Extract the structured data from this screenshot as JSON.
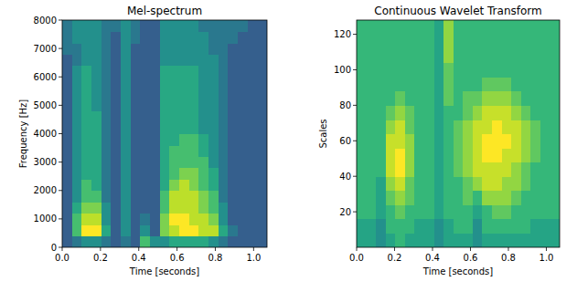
{
  "chart_data": [
    {
      "type": "heatmap",
      "title": "Mel-spectrum",
      "x_label": "Time [seconds]",
      "y_label": "Frequency [Hz]",
      "xlim": [
        0,
        1.07
      ],
      "ylim": [
        0,
        8000
      ],
      "xticks": [
        {
          "value": 0,
          "label": "0.0"
        },
        {
          "value": 0.2,
          "label": "0.2"
        },
        {
          "value": 0.4,
          "label": "0.4"
        },
        {
          "value": 0.6,
          "label": "0.6"
        },
        {
          "value": 0.8,
          "label": "0.8"
        },
        {
          "value": 1.0,
          "label": "1.0"
        }
      ],
      "yticks": [
        0,
        1000,
        2000,
        3000,
        4000,
        5000,
        6000,
        7000,
        8000
      ],
      "zlim": [
        -1,
        9
      ],
      "cells": [
        [
          2,
          3,
          4,
          4,
          3,
          2,
          3,
          2,
          6,
          4,
          4,
          5,
          5,
          5,
          5,
          4,
          3,
          2,
          2,
          2,
          2
        ],
        [
          2,
          6,
          9,
          9,
          5,
          2,
          4,
          2,
          4,
          2,
          7,
          8,
          9,
          9,
          8,
          8,
          5,
          3,
          2,
          2,
          2
        ],
        [
          2,
          6,
          8,
          8,
          4,
          2,
          4,
          2,
          3,
          2,
          7,
          9,
          9,
          8,
          8,
          7,
          4,
          2,
          2,
          2,
          2
        ],
        [
          2,
          5,
          7,
          7,
          4,
          2,
          4,
          2,
          2,
          2,
          6,
          8,
          8,
          8,
          7,
          6,
          4,
          2,
          2,
          2,
          2
        ],
        [
          2,
          4,
          6,
          6,
          3,
          2,
          4,
          2,
          2,
          2,
          6,
          8,
          8,
          8,
          7,
          6,
          3,
          2,
          2,
          2,
          2
        ],
        [
          2,
          4,
          6,
          5,
          3,
          2,
          4,
          2,
          2,
          2,
          5,
          7,
          8,
          7,
          6,
          5,
          3,
          2,
          2,
          2,
          2
        ],
        [
          2,
          4,
          5,
          5,
          3,
          2,
          4,
          2,
          2,
          2,
          5,
          6,
          7,
          7,
          6,
          5,
          3,
          2,
          2,
          2,
          2
        ],
        [
          2,
          4,
          5,
          5,
          3,
          2,
          4,
          2,
          2,
          2,
          5,
          6,
          6,
          6,
          6,
          4,
          3,
          2,
          2,
          2,
          2
        ],
        [
          2,
          4,
          5,
          5,
          3,
          2,
          4,
          2,
          2,
          2,
          5,
          6,
          6,
          6,
          5,
          4,
          3,
          2,
          2,
          2,
          2
        ],
        [
          2,
          4,
          5,
          5,
          3,
          2,
          4,
          2,
          2,
          2,
          5,
          5,
          6,
          6,
          5,
          4,
          3,
          2,
          2,
          2,
          2
        ],
        [
          2,
          4,
          5,
          5,
          3,
          2,
          4,
          2,
          2,
          2,
          5,
          5,
          5,
          5,
          4,
          4,
          3,
          2,
          2,
          2,
          2
        ],
        [
          2,
          4,
          5,
          5,
          3,
          2,
          4,
          2,
          2,
          2,
          5,
          5,
          5,
          5,
          4,
          4,
          3,
          2,
          2,
          2,
          2
        ],
        [
          2,
          4,
          5,
          4,
          3,
          2,
          4,
          2,
          2,
          2,
          5,
          5,
          5,
          5,
          4,
          4,
          3,
          2,
          2,
          2,
          2
        ],
        [
          2,
          4,
          5,
          4,
          3,
          2,
          4,
          2,
          2,
          2,
          5,
          5,
          5,
          5,
          4,
          4,
          3,
          2,
          2,
          2,
          2
        ],
        [
          2,
          4,
          5,
          4,
          3,
          2,
          4,
          2,
          2,
          2,
          5,
          5,
          5,
          5,
          4,
          4,
          3,
          2,
          2,
          2,
          2
        ],
        [
          2,
          4,
          5,
          4,
          3,
          2,
          4,
          2,
          2,
          2,
          5,
          5,
          5,
          5,
          4,
          4,
          3,
          2,
          2,
          2,
          2
        ],
        [
          2,
          3,
          4,
          4,
          3,
          2,
          4,
          2,
          2,
          2,
          4,
          4,
          4,
          4,
          4,
          4,
          3,
          2,
          2,
          2,
          2
        ],
        [
          3,
          3,
          4,
          4,
          3,
          2,
          4,
          2,
          2,
          2,
          4,
          4,
          4,
          4,
          4,
          3,
          3,
          2,
          2,
          2,
          2
        ],
        [
          3,
          4,
          4,
          4,
          3,
          2,
          4,
          3,
          2,
          2,
          4,
          4,
          4,
          4,
          4,
          3,
          3,
          3,
          2,
          2,
          2
        ],
        [
          3,
          4,
          4,
          4,
          3,
          3,
          4,
          3,
          2,
          2,
          4,
          4,
          4,
          4,
          3,
          3,
          3,
          3,
          3,
          2,
          2
        ]
      ]
    },
    {
      "type": "heatmap",
      "title": "Continuous Wavelet Transform",
      "x_label": "Time [seconds]",
      "y_label": "Scales",
      "xlim": [
        0,
        1.07
      ],
      "ylim": [
        0,
        128
      ],
      "xticks": [
        {
          "value": 0,
          "label": "0.0"
        },
        {
          "value": 0.2,
          "label": "0.2"
        },
        {
          "value": 0.4,
          "label": "0.4"
        },
        {
          "value": 0.6,
          "label": "0.6"
        },
        {
          "value": 0.8,
          "label": "0.8"
        },
        {
          "value": 1.0,
          "label": "1.0"
        }
      ],
      "yticks": [
        20,
        40,
        60,
        80,
        100,
        120
      ],
      "zlim": [
        -3,
        9
      ],
      "cells": [
        [
          4,
          4,
          3,
          4,
          5,
          4,
          4,
          4,
          3,
          4,
          4,
          4,
          3,
          4,
          4,
          4,
          4,
          4,
          4,
          4,
          4
        ],
        [
          4,
          4,
          3,
          5,
          5,
          5,
          4,
          4,
          3,
          4,
          5,
          5,
          3,
          5,
          5,
          5,
          5,
          5,
          4,
          4,
          4
        ],
        [
          5,
          5,
          4,
          5,
          6,
          5,
          5,
          5,
          4,
          5,
          5,
          5,
          4,
          5,
          6,
          6,
          5,
          5,
          5,
          5,
          5
        ],
        [
          5,
          5,
          4,
          6,
          7,
          6,
          5,
          5,
          4,
          5,
          5,
          6,
          5,
          7,
          7,
          7,
          6,
          5,
          5,
          5,
          5
        ],
        [
          5,
          5,
          4,
          7,
          8,
          6,
          5,
          5,
          4,
          5,
          5,
          6,
          7,
          8,
          8,
          7,
          7,
          6,
          5,
          5,
          5
        ],
        [
          5,
          5,
          5,
          8,
          9,
          7,
          5,
          5,
          4,
          5,
          6,
          7,
          8,
          8,
          8,
          8,
          7,
          6,
          5,
          5,
          5
        ],
        [
          5,
          5,
          5,
          8,
          9,
          7,
          5,
          5,
          4,
          5,
          6,
          7,
          8,
          9,
          9,
          8,
          8,
          7,
          6,
          5,
          5
        ],
        [
          5,
          5,
          5,
          8,
          8,
          7,
          5,
          5,
          4,
          5,
          6,
          7,
          8,
          9,
          9,
          9,
          8,
          7,
          6,
          5,
          5
        ],
        [
          5,
          5,
          5,
          7,
          8,
          6,
          5,
          5,
          4,
          5,
          6,
          7,
          8,
          8,
          9,
          8,
          8,
          7,
          6,
          5,
          5
        ],
        [
          5,
          5,
          5,
          6,
          7,
          6,
          5,
          5,
          4,
          5,
          5,
          6,
          7,
          8,
          8,
          8,
          7,
          6,
          5,
          5,
          5
        ],
        [
          5,
          5,
          5,
          5,
          6,
          5,
          5,
          5,
          4,
          6,
          5,
          6,
          6,
          7,
          7,
          7,
          6,
          5,
          5,
          5,
          5
        ],
        [
          5,
          5,
          5,
          5,
          5,
          5,
          5,
          5,
          4,
          6,
          5,
          5,
          5,
          6,
          6,
          6,
          5,
          5,
          5,
          5,
          5
        ],
        [
          5,
          5,
          5,
          5,
          5,
          5,
          5,
          5,
          4,
          6,
          5,
          5,
          5,
          5,
          5,
          5,
          5,
          5,
          5,
          5,
          5
        ],
        [
          5,
          5,
          5,
          5,
          5,
          5,
          5,
          5,
          4,
          7,
          5,
          5,
          5,
          5,
          5,
          5,
          5,
          5,
          5,
          5,
          5
        ],
        [
          5,
          5,
          5,
          5,
          5,
          5,
          5,
          5,
          4,
          7,
          5,
          5,
          5,
          5,
          5,
          5,
          5,
          5,
          5,
          5,
          5
        ],
        [
          5,
          5,
          5,
          5,
          5,
          5,
          5,
          5,
          4,
          7,
          5,
          5,
          5,
          5,
          5,
          5,
          5,
          5,
          5,
          5,
          5
        ]
      ]
    }
  ]
}
